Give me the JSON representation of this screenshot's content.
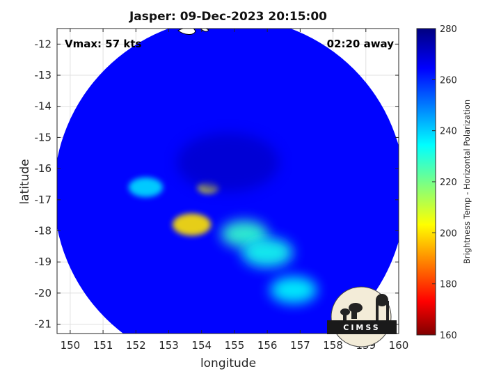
{
  "chart_data": {
    "type": "heatmap",
    "title": "Jasper: 09-Dec-2023 20:15:00",
    "xlabel": "longitude",
    "ylabel": "latitude",
    "xlim": [
      149.6,
      160.0
    ],
    "ylim": [
      -21.3,
      -11.5
    ],
    "xticks": [
      150,
      151,
      152,
      153,
      154,
      155,
      156,
      157,
      158,
      159,
      160
    ],
    "yticks": [
      -12,
      -13,
      -14,
      -15,
      -16,
      -17,
      -18,
      -19,
      -20,
      -21
    ],
    "xtick_labels": [
      "150",
      "151",
      "152",
      "153",
      "154",
      "155",
      "156",
      "157",
      "158",
      "159",
      "160"
    ],
    "ytick_labels": [
      "-12",
      "-13",
      "-14",
      "-15",
      "-16",
      "-17",
      "-18",
      "-19",
      "-20",
      "-21"
    ],
    "grid": true,
    "annotations": {
      "left": "Vmax: 57 kts",
      "right": "02:20 away"
    },
    "swath": {
      "center": [
        154.85,
        -16.8
      ],
      "radius_deg": 5.35,
      "background_temp": 264
    },
    "features": [
      {
        "lon": 153.7,
        "lat": -17.8,
        "temp": 200,
        "spread": 0.45
      },
      {
        "lon": 154.2,
        "lat": -16.6,
        "temp": 204,
        "spread": 0.25
      },
      {
        "lon": 155.3,
        "lat": -18.1,
        "temp": 228,
        "spread": 0.55
      },
      {
        "lon": 156.0,
        "lat": -18.7,
        "temp": 232,
        "spread": 0.6
      },
      {
        "lon": 156.8,
        "lat": -19.9,
        "temp": 234,
        "spread": 0.55
      },
      {
        "lon": 152.3,
        "lat": -16.6,
        "temp": 238,
        "spread": 0.4
      },
      {
        "lon": 154.8,
        "lat": -15.8,
        "temp": 270,
        "spread": 1.2
      }
    ],
    "colorbar": {
      "title": "Brightness Temp - Horizontal Polarization",
      "min": 160,
      "max": 280,
      "ticks": [
        160,
        180,
        200,
        220,
        240,
        260,
        280
      ],
      "tick_labels": [
        "160",
        "180",
        "200",
        "220",
        "240",
        "260",
        "280"
      ],
      "colormap": "jet-reversed"
    }
  },
  "logo": {
    "text": "CIMSS"
  },
  "colors": {
    "background": "#ffffff",
    "grid": "#e0e0e0",
    "axis": "#262626"
  }
}
